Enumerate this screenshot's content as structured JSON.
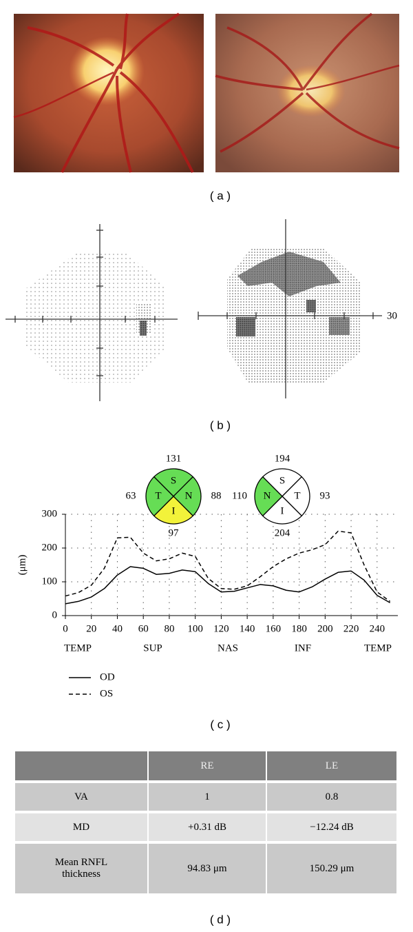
{
  "panel_a": {
    "label": "( a )"
  },
  "panel_b": {
    "label": "( b )",
    "field_label": "30"
  },
  "chart_data": {
    "type": "line",
    "ylabel": "(μm)",
    "x": [
      0,
      10,
      20,
      30,
      40,
      50,
      60,
      70,
      80,
      90,
      100,
      110,
      120,
      130,
      140,
      150,
      160,
      170,
      180,
      190,
      200,
      210,
      220,
      230,
      240,
      250
    ],
    "series": [
      {
        "name": "OD",
        "color": "#000000",
        "dash": false,
        "values": [
          35,
          42,
          55,
          80,
          120,
          145,
          140,
          122,
          125,
          135,
          130,
          95,
          70,
          72,
          82,
          92,
          88,
          75,
          70,
          85,
          108,
          128,
          132,
          105,
          60,
          38
        ]
      },
      {
        "name": "OS",
        "color": "#000000",
        "dash": true,
        "values": [
          58,
          68,
          90,
          140,
          230,
          232,
          185,
          162,
          168,
          185,
          175,
          110,
          80,
          78,
          88,
          115,
          145,
          168,
          185,
          195,
          210,
          250,
          245,
          150,
          70,
          42
        ]
      }
    ],
    "xlim": [
      0,
      256
    ],
    "ylim": [
      0,
      300
    ],
    "xticks": [
      0,
      20,
      40,
      60,
      80,
      100,
      120,
      140,
      160,
      180,
      200,
      220,
      240
    ],
    "yticks": [
      0,
      100,
      200,
      300
    ],
    "grid": true,
    "region_labels": [
      "TEMP",
      "SUP",
      "NAS",
      "INF",
      "TEMP"
    ],
    "quadrant_charts": [
      {
        "quadrants": [
          {
            "letter": "S",
            "value": 131,
            "color": "#66dd55"
          },
          {
            "letter": "N",
            "value": 88,
            "color": "#66dd55"
          },
          {
            "letter": "I",
            "value": 97,
            "color": "#f2f23a"
          },
          {
            "letter": "T",
            "value": 63,
            "color": "#66dd55"
          }
        ]
      },
      {
        "quadrants": [
          {
            "letter": "S",
            "value": 194,
            "color": "#ffffff"
          },
          {
            "letter": "T",
            "value": 93,
            "color": "#ffffff"
          },
          {
            "letter": "I",
            "value": 204,
            "color": "#ffffff"
          },
          {
            "letter": "N",
            "value": 110,
            "color": "#66dd55"
          }
        ]
      }
    ],
    "label": "( c )"
  },
  "table": {
    "header": [
      "RE",
      "LE"
    ],
    "rows": [
      [
        "VA",
        "1",
        "0.8"
      ],
      [
        "MD",
        "+0.31 dB",
        "−12.24 dB"
      ],
      [
        "Mean RNFL thickness",
        "94.83 μm",
        "150.29 μm"
      ]
    ],
    "label": "( d )"
  }
}
